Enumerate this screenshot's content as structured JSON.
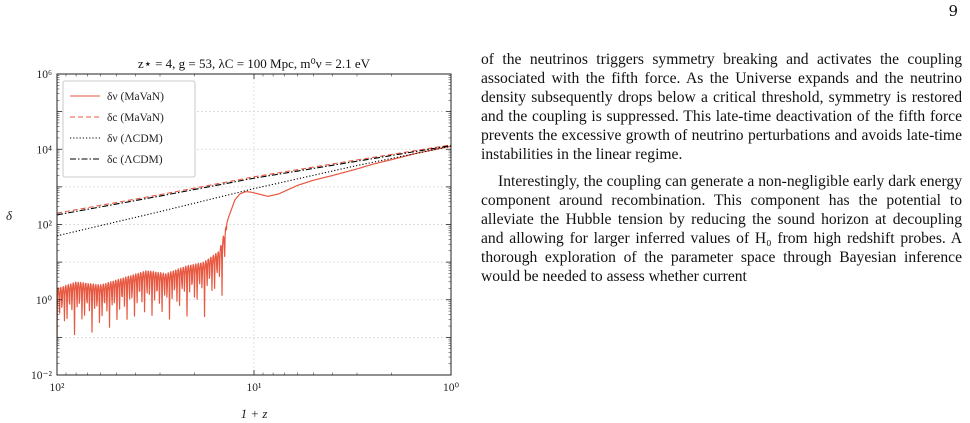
{
  "page": {
    "number": "9",
    "paragraphs": [
      "of the neutrinos triggers symmetry breaking and activates the coupling associated with the fifth force. As the Universe expands and the neutrino density subsequently drops below a critical threshold, symmetry is restored and the coupling is suppressed. This late-time deactivation of the fifth force prevents the excessive growth of neutrino perturbations and avoids late-time instabilities in the linear regime.",
      "Interestingly, the coupling can generate a non-negligible early dark energy component around recombination. This component has the potential to alleviate the Hubble tension by reducing the sound horizon at decoupling and allowing for larger inferred values of H₀ from high redshift probes. A thorough exploration of the parameter space through Bayesian inference would be needed to assess whether current"
    ]
  },
  "chart_data": {
    "type": "line",
    "title": "z⋆ = 4, g = 53, λC = 100 Mpc, m⁰ν = 2.1 eV",
    "xlabel": "1 + z",
    "ylabel": "δ",
    "x_scale": "log",
    "y_scale": "log",
    "x_reversed": true,
    "xlim": [
      100,
      1
    ],
    "ylim": [
      0.01,
      1000000
    ],
    "x_ticks": [
      "10²",
      "10¹",
      "10⁰"
    ],
    "y_ticks": [
      "10⁻²",
      "10⁰",
      "10²",
      "10⁴",
      "10⁶"
    ],
    "grid": true,
    "legend_position": "top-left",
    "series": [
      {
        "name": "δν (MaVaN)",
        "style": "solid",
        "color": "#e8573f",
        "x": [
          100,
          80,
          60,
          45,
          35,
          28,
          22,
          18,
          15,
          13.5,
          12.5,
          11.8,
          11,
          10.3,
          9.5,
          8.5,
          7.5,
          6,
          5,
          4,
          3,
          2.5,
          2,
          1.5,
          1
        ],
        "y": [
          2,
          3,
          2.5,
          4,
          6,
          5,
          8,
          10,
          20,
          150,
          450,
          650,
          750,
          720,
          650,
          560,
          650,
          1100,
          1500,
          2000,
          3000,
          4000,
          5300,
          7800,
          12000
        ]
      },
      {
        "name": "δc (MaVaN)",
        "style": "dashed",
        "color": "#e8573f",
        "x": [
          100,
          30,
          10,
          3,
          1
        ],
        "y": [
          200,
          620,
          1850,
          5200,
          13000
        ]
      },
      {
        "name": "δν (ΛCDM)",
        "style": "dotted",
        "color": "#000000",
        "x": [
          100,
          30,
          10,
          3,
          1
        ],
        "y": [
          50,
          220,
          900,
          3700,
          12000
        ]
      },
      {
        "name": "δc (ΛCDM)",
        "style": "dashdot",
        "color": "#000000",
        "x": [
          100,
          30,
          10,
          3,
          1
        ],
        "y": [
          180,
          570,
          1700,
          4800,
          12500
        ]
      }
    ]
  }
}
